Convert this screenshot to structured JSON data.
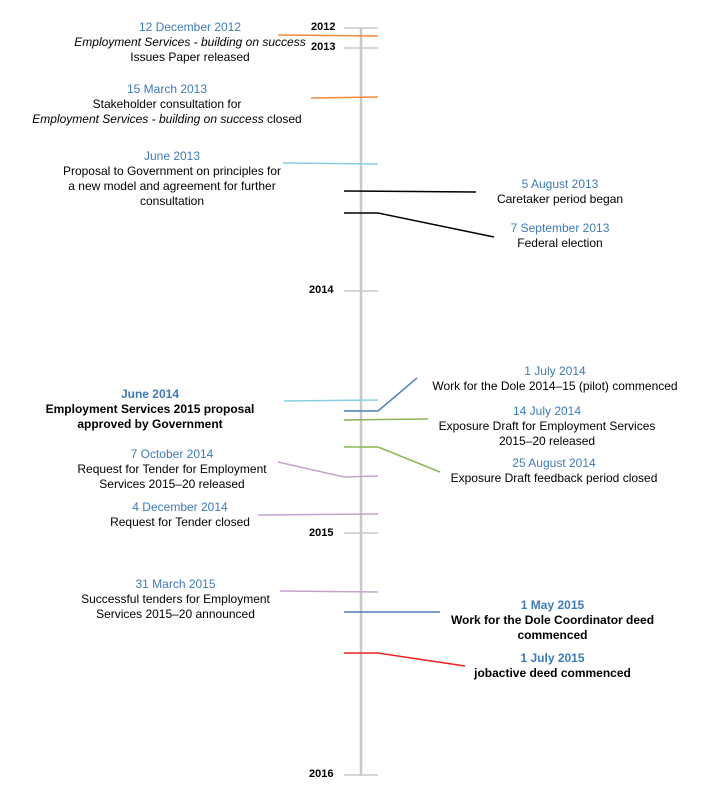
{
  "years": [
    "2012",
    "2013",
    "2014",
    "2015",
    "2016"
  ],
  "colors": {
    "axis": "#c8c8c8",
    "orange": "#f08a3c",
    "cyan": "#86cfe2",
    "black": "#000000",
    "blue": "#4a7fbf",
    "green": "#8bb554",
    "purple": "#c3a3cc",
    "red": "#e8231f",
    "date_text": "#3d7ab8"
  },
  "events": [
    {
      "date": "12 December 2012",
      "desc_italic": "Employment Services - building on success",
      "desc": "Issues Paper released",
      "color": "orange"
    },
    {
      "date": "15 March 2013",
      "desc": "Stakeholder consultation for",
      "desc_italic": "Employment Services - building on success",
      "desc_tail": "closed",
      "color": "orange"
    },
    {
      "date": "June 2013",
      "desc": "Proposal to Government on principles for a new model and agreement for further consultation",
      "color": "cyan"
    },
    {
      "date": "5 August 2013",
      "desc": "Caretaker period began",
      "color": "black"
    },
    {
      "date": "7 September 2013",
      "desc": "Federal election",
      "color": "black"
    },
    {
      "date": "1 July 2014",
      "desc": "Work for the Dole 2014–15 (pilot) commenced",
      "color": "blue"
    },
    {
      "date": "June 2014",
      "desc": "Employment Services 2015 proposal approved by Government",
      "color": "cyan"
    },
    {
      "date": "14 July 2014",
      "desc": "Exposure Draft for Employment Services 2015–20 released",
      "color": "green"
    },
    {
      "date": "25 August 2014",
      "desc": "Exposure Draft feedback period closed",
      "color": "green"
    },
    {
      "date": "7 October 2014",
      "desc": "Request for Tender for Employment Services 2015–20 released",
      "color": "purple"
    },
    {
      "date": "4 December 2014",
      "desc": "Request for Tender closed",
      "color": "purple"
    },
    {
      "date": "31 March 2015",
      "desc": "Successful tenders for Employment Services 2015–20 announced",
      "color": "purple"
    },
    {
      "date": "1 May 2015",
      "desc": "Work for the Dole Coordinator deed commenced",
      "color": "blue"
    },
    {
      "date": "1 July 2015",
      "desc": "jobactive deed commenced",
      "color": "red"
    }
  ]
}
